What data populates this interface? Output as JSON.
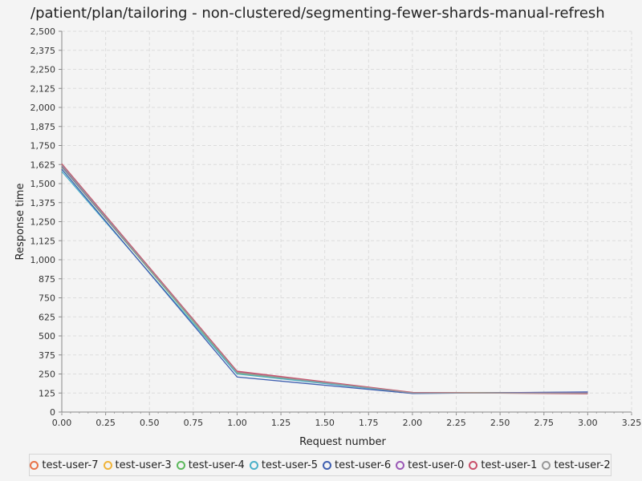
{
  "chart_data": {
    "type": "line",
    "title": "/patient/plan/tailoring - non-clustered/segmenting-fewer-shards-manual-refresh",
    "xlabel": "Request number",
    "ylabel": "Response time",
    "xlim": [
      0,
      3.25
    ],
    "ylim": [
      0,
      2500
    ],
    "x_ticks": [
      "0.00",
      "0.25",
      "0.50",
      "0.75",
      "1.00",
      "1.25",
      "1.50",
      "1.75",
      "2.00",
      "2.25",
      "2.50",
      "2.75",
      "3.00",
      "3.25"
    ],
    "y_ticks": [
      "0",
      "125",
      "250",
      "375",
      "500",
      "625",
      "750",
      "875",
      "1,000",
      "1,125",
      "1,250",
      "1,375",
      "1,500",
      "1,625",
      "1,750",
      "1,875",
      "2,000",
      "2,125",
      "2,250",
      "2,375",
      "2,500"
    ],
    "x_tick_values": [
      0,
      0.25,
      0.5,
      0.75,
      1,
      1.25,
      1.5,
      1.75,
      2,
      2.25,
      2.5,
      2.75,
      3,
      3.25
    ],
    "y_tick_values": [
      0,
      125,
      250,
      375,
      500,
      625,
      750,
      875,
      1000,
      1125,
      1250,
      1375,
      1500,
      1625,
      1750,
      1875,
      2000,
      2125,
      2250,
      2375,
      2500
    ],
    "grid": true,
    "legend_position": "bottom",
    "x": [
      0,
      1,
      2,
      3
    ],
    "series": [
      {
        "name": "test-user-7",
        "color": "#e8734a",
        "values": [
          1625,
          265,
          128,
          125
        ]
      },
      {
        "name": "test-user-3",
        "color": "#f0b43a",
        "values": [
          1620,
          255,
          126,
          128
        ]
      },
      {
        "name": "test-user-4",
        "color": "#5cb85c",
        "values": [
          1610,
          258,
          125,
          130
        ]
      },
      {
        "name": "test-user-5",
        "color": "#4bb0c8",
        "values": [
          1580,
          250,
          124,
          127
        ]
      },
      {
        "name": "test-user-6",
        "color": "#3f5fb0",
        "values": [
          1595,
          230,
          122,
          132
        ]
      },
      {
        "name": "test-user-0",
        "color": "#9b59b6",
        "values": [
          1615,
          262,
          127,
          126
        ]
      },
      {
        "name": "test-user-1",
        "color": "#c9506a",
        "values": [
          1630,
          268,
          129,
          120
        ]
      },
      {
        "name": "test-user-2",
        "color": "#999999",
        "values": [
          1622,
          260,
          126,
          124
        ]
      }
    ]
  }
}
